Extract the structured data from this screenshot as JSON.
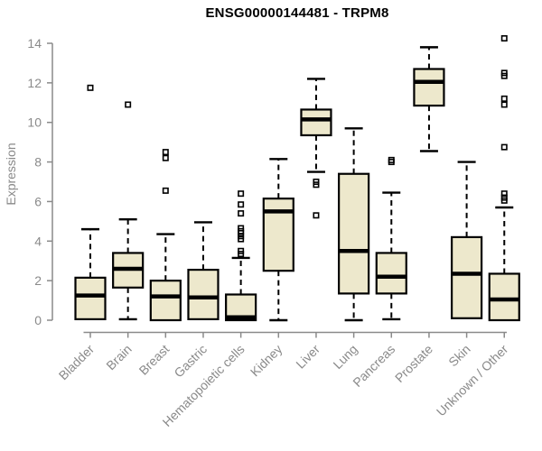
{
  "chart_data": {
    "type": "boxplot",
    "title": "ENSG00000144481 - TRPM8",
    "ylabel": "Expression",
    "xlabel": "",
    "ylim": [
      0,
      14
    ],
    "yticks": [
      0,
      2,
      4,
      6,
      8,
      10,
      12,
      14
    ],
    "grid": false,
    "legend": "none",
    "categories": [
      "Bladder",
      "Brain",
      "Breast",
      "Gastric",
      "Hematopoietic cells",
      "Kidney",
      "Liver",
      "Lung",
      "Pancreas",
      "Prostate",
      "Skin",
      "Unknown / Other"
    ],
    "series": [
      {
        "name": "Bladder",
        "whisker_low": null,
        "q1": 0.05,
        "median": 1.25,
        "q3": 2.15,
        "whisker_high": 4.6,
        "outliers": [
          11.75
        ]
      },
      {
        "name": "Brain",
        "whisker_low": 0.05,
        "q1": 1.65,
        "median": 2.6,
        "q3": 3.4,
        "whisker_high": 5.1,
        "outliers": [
          10.9
        ]
      },
      {
        "name": "Breast",
        "whisker_low": null,
        "q1": 0.0,
        "median": 1.2,
        "q3": 2.0,
        "whisker_high": 4.35,
        "outliers": [
          8.5,
          8.2,
          6.55
        ]
      },
      {
        "name": "Gastric",
        "whisker_low": null,
        "q1": 0.05,
        "median": 1.15,
        "q3": 2.55,
        "whisker_high": 4.95,
        "outliers": []
      },
      {
        "name": "Hematopoietic cells",
        "whisker_low": null,
        "q1": 0.0,
        "median": 0.15,
        "q3": 1.3,
        "whisker_high": 3.15,
        "outliers": [
          6.4,
          5.85,
          5.4,
          4.65,
          4.5,
          4.4,
          4.25,
          4.1,
          3.5,
          3.35
        ]
      },
      {
        "name": "Kidney",
        "whisker_low": 0.0,
        "q1": 2.5,
        "median": 5.5,
        "q3": 6.15,
        "whisker_high": 8.15,
        "outliers": []
      },
      {
        "name": "Liver",
        "whisker_low": 7.5,
        "q1": 9.35,
        "median": 10.15,
        "q3": 10.65,
        "whisker_high": 12.2,
        "outliers": [
          7.0,
          6.85,
          5.3
        ]
      },
      {
        "name": "Lung",
        "whisker_low": 0.0,
        "q1": 1.35,
        "median": 3.5,
        "q3": 7.4,
        "whisker_high": 9.7,
        "outliers": []
      },
      {
        "name": "Pancreas",
        "whisker_low": 0.05,
        "q1": 1.35,
        "median": 2.2,
        "q3": 3.4,
        "whisker_high": 6.45,
        "outliers": [
          8.1,
          8.0
        ]
      },
      {
        "name": "Prostate",
        "whisker_low": 8.55,
        "q1": 10.85,
        "median": 12.05,
        "q3": 12.7,
        "whisker_high": 13.8,
        "outliers": []
      },
      {
        "name": "Skin",
        "whisker_low": null,
        "q1": 0.1,
        "median": 2.35,
        "q3": 4.2,
        "whisker_high": 8.0,
        "outliers": []
      },
      {
        "name": "Unknown / Other",
        "whisker_low": null,
        "q1": 0.0,
        "median": 1.05,
        "q3": 2.35,
        "whisker_high": 5.7,
        "outliers": [
          14.25,
          12.5,
          12.35,
          11.2,
          10.9,
          8.75,
          6.4,
          6.2,
          6.05
        ]
      }
    ],
    "colors": {
      "box_fill": "#EDE8CC",
      "box_border": "#000000",
      "axis": "#8a8a8a",
      "title": "#000000",
      "background": "#ffffff"
    }
  }
}
